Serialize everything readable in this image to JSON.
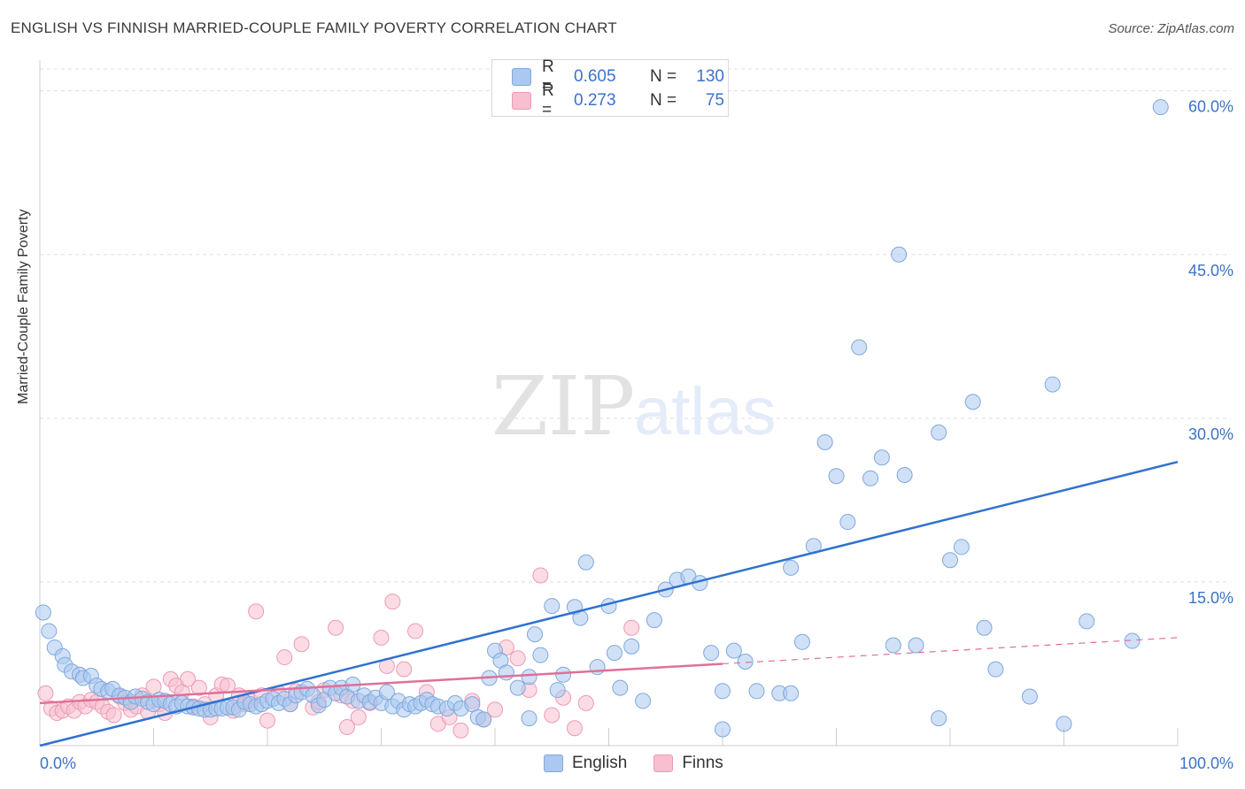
{
  "title": "ENGLISH VS FINNISH MARRIED-COUPLE FAMILY POVERTY CORRELATION CHART",
  "source": "Source: ZipAtlas.com",
  "watermark": {
    "zip": "ZIP",
    "atlas": "atlas"
  },
  "legend": {
    "rows": [
      {
        "r_label": "R =",
        "r_value": "0.605",
        "n_label": "N =",
        "n_value": "130"
      },
      {
        "r_label": "R =",
        "r_value": "0.273",
        "n_label": "N =",
        "n_value": "75"
      }
    ]
  },
  "bottom_legend": {
    "english": "English",
    "finns": "Finns"
  },
  "colors": {
    "english_fill": "#aac8f0",
    "english_stroke": "#7fa8dc",
    "english_line": "#2f72d0",
    "finns_fill": "#f7bfd0",
    "finns_stroke": "#ee9ab4",
    "finns_line": "#e0709a",
    "axis_text": "#3a73c9",
    "grid": "#dddddd"
  },
  "chart_data": {
    "type": "scatter",
    "title": "ENGLISH VS FINNISH MARRIED-COUPLE FAMILY POVERTY CORRELATION CHART",
    "xlabel": "",
    "ylabel": "Married-Couple Family Poverty",
    "xlim": [
      0,
      100
    ],
    "ylim": [
      0,
      62
    ],
    "x_tick_labels": [
      {
        "value": 0,
        "label": "0.0%"
      },
      {
        "value": 100,
        "label": "100.0%"
      }
    ],
    "y_tick_labels": [
      {
        "value": 15,
        "label": "15.0%"
      },
      {
        "value": 30,
        "label": "30.0%"
      },
      {
        "value": 45,
        "label": "45.0%"
      },
      {
        "value": 60,
        "label": "60.0%"
      }
    ],
    "grid": true,
    "series": [
      {
        "name": "English",
        "r": 0.605,
        "n": 130,
        "trend": {
          "x": [
            0,
            100
          ],
          "y": [
            0,
            26
          ]
        },
        "points": [
          [
            0.3,
            12.2
          ],
          [
            0.8,
            10.5
          ],
          [
            1.3,
            9.0
          ],
          [
            2,
            8.2
          ],
          [
            2.2,
            7.4
          ],
          [
            2.8,
            6.8
          ],
          [
            3.5,
            6.5
          ],
          [
            3.8,
            6.2
          ],
          [
            4.5,
            6.4
          ],
          [
            5,
            5.5
          ],
          [
            5.4,
            5.2
          ],
          [
            6,
            5.0
          ],
          [
            6.4,
            5.2
          ],
          [
            7,
            4.6
          ],
          [
            7.5,
            4.4
          ],
          [
            8,
            4.0
          ],
          [
            8.4,
            4.5
          ],
          [
            9,
            4.3
          ],
          [
            9.5,
            4.0
          ],
          [
            10,
            3.8
          ],
          [
            10.5,
            4.2
          ],
          [
            11,
            4.1
          ],
          [
            11.5,
            3.8
          ],
          [
            12,
            3.6
          ],
          [
            12.5,
            3.9
          ],
          [
            13,
            3.6
          ],
          [
            13.5,
            3.5
          ],
          [
            14,
            3.4
          ],
          [
            14.5,
            3.3
          ],
          [
            15,
            3.3
          ],
          [
            15.5,
            3.4
          ],
          [
            16,
            3.4
          ],
          [
            16.5,
            3.5
          ],
          [
            17,
            3.5
          ],
          [
            17.5,
            3.3
          ],
          [
            18,
            4.0
          ],
          [
            18.5,
            3.8
          ],
          [
            19,
            3.6
          ],
          [
            19.5,
            3.8
          ],
          [
            20,
            4.1
          ],
          [
            20.5,
            4.3
          ],
          [
            21,
            3.9
          ],
          [
            21.5,
            4.3
          ],
          [
            22,
            3.8
          ],
          [
            22.5,
            4.6
          ],
          [
            23,
            4.9
          ],
          [
            23.5,
            5.2
          ],
          [
            24,
            4.6
          ],
          [
            24.5,
            3.7
          ],
          [
            25,
            4.2
          ],
          [
            25.5,
            5.3
          ],
          [
            26,
            4.8
          ],
          [
            26.5,
            5.3
          ],
          [
            27,
            4.5
          ],
          [
            27.5,
            5.6
          ],
          [
            28,
            4.1
          ],
          [
            28.5,
            4.6
          ],
          [
            29,
            4.0
          ],
          [
            29.5,
            4.4
          ],
          [
            30,
            3.9
          ],
          [
            30.5,
            4.9
          ],
          [
            31,
            3.6
          ],
          [
            31.5,
            4.1
          ],
          [
            32,
            3.3
          ],
          [
            32.5,
            3.8
          ],
          [
            33,
            3.6
          ],
          [
            33.5,
            3.9
          ],
          [
            34,
            4.2
          ],
          [
            34.5,
            3.8
          ],
          [
            35,
            3.6
          ],
          [
            35.8,
            3.4
          ],
          [
            36.5,
            3.9
          ],
          [
            37,
            3.4
          ],
          [
            38,
            3.8
          ],
          [
            38.5,
            2.6
          ],
          [
            39,
            2.4
          ],
          [
            39.5,
            6.2
          ],
          [
            40,
            8.7
          ],
          [
            40.5,
            7.8
          ],
          [
            41,
            6.7
          ],
          [
            42,
            5.3
          ],
          [
            43,
            6.3
          ],
          [
            43.5,
            10.2
          ],
          [
            44,
            8.3
          ],
          [
            45,
            12.8
          ],
          [
            45.5,
            5.1
          ],
          [
            46,
            6.5
          ],
          [
            47,
            12.7
          ],
          [
            47.5,
            11.7
          ],
          [
            48,
            16.8
          ],
          [
            49,
            7.2
          ],
          [
            50,
            12.8
          ],
          [
            50.5,
            8.5
          ],
          [
            51,
            5.3
          ],
          [
            52,
            9.1
          ],
          [
            53,
            4.1
          ],
          [
            54,
            11.5
          ],
          [
            55,
            14.3
          ],
          [
            56,
            15.2
          ],
          [
            57,
            15.5
          ],
          [
            58,
            14.9
          ],
          [
            59,
            8.5
          ],
          [
            60,
            5.0
          ],
          [
            61,
            8.7
          ],
          [
            62,
            7.7
          ],
          [
            63,
            5.0
          ],
          [
            65,
            4.8
          ],
          [
            66,
            16.3
          ],
          [
            67,
            9.5
          ],
          [
            68,
            18.3
          ],
          [
            69,
            27.8
          ],
          [
            70,
            24.7
          ],
          [
            71,
            20.5
          ],
          [
            72,
            36.5
          ],
          [
            73,
            24.5
          ],
          [
            74,
            26.4
          ],
          [
            75,
            9.2
          ],
          [
            76,
            24.8
          ],
          [
            77,
            9.2
          ],
          [
            79,
            28.7
          ],
          [
            80,
            17.0
          ],
          [
            81,
            18.2
          ],
          [
            82,
            31.5
          ],
          [
            83,
            10.8
          ],
          [
            84,
            7.0
          ],
          [
            87,
            4.5
          ],
          [
            89,
            33.1
          ],
          [
            90,
            2.0
          ],
          [
            92,
            11.4
          ],
          [
            96,
            9.6
          ],
          [
            75.5,
            45.0
          ],
          [
            98.5,
            58.5
          ],
          [
            60,
            1.5
          ],
          [
            79,
            2.5
          ],
          [
            66,
            4.8
          ],
          [
            43,
            2.5
          ]
        ]
      },
      {
        "name": "Finns",
        "r": 0.273,
        "n": 75,
        "trend": {
          "x": [
            0,
            60
          ],
          "y": [
            3.9,
            7.5
          ]
        },
        "trend_dashed": {
          "x": [
            60,
            100
          ],
          "y": [
            7.5,
            9.9
          ]
        },
        "points": [
          [
            0.5,
            4.8
          ],
          [
            1,
            3.4
          ],
          [
            1.5,
            3.0
          ],
          [
            2,
            3.2
          ],
          [
            2.5,
            3.6
          ],
          [
            3,
            3.2
          ],
          [
            3.5,
            4.0
          ],
          [
            4,
            3.6
          ],
          [
            4.5,
            4.2
          ],
          [
            5,
            4.0
          ],
          [
            5.5,
            3.6
          ],
          [
            6,
            3.1
          ],
          [
            6.5,
            2.8
          ],
          [
            7,
            4.5
          ],
          [
            7.5,
            3.9
          ],
          [
            8,
            3.3
          ],
          [
            8.5,
            3.6
          ],
          [
            9,
            4.6
          ],
          [
            9.5,
            3.1
          ],
          [
            10,
            5.4
          ],
          [
            10.5,
            3.8
          ],
          [
            11,
            3.0
          ],
          [
            11.5,
            6.1
          ],
          [
            12,
            5.5
          ],
          [
            12.5,
            4.9
          ],
          [
            13,
            6.1
          ],
          [
            13.5,
            3.6
          ],
          [
            14,
            5.3
          ],
          [
            14.5,
            3.8
          ],
          [
            15,
            2.6
          ],
          [
            15.5,
            4.6
          ],
          [
            16,
            5.6
          ],
          [
            16.5,
            5.5
          ],
          [
            17,
            3.2
          ],
          [
            17.5,
            4.6
          ],
          [
            18,
            3.8
          ],
          [
            18.5,
            4.1
          ],
          [
            19,
            12.3
          ],
          [
            19.5,
            4.6
          ],
          [
            20,
            2.3
          ],
          [
            21,
            4.8
          ],
          [
            21.5,
            8.1
          ],
          [
            22,
            3.8
          ],
          [
            22.5,
            5.0
          ],
          [
            23,
            9.3
          ],
          [
            24,
            3.5
          ],
          [
            24.5,
            4.0
          ],
          [
            25,
            5.1
          ],
          [
            26,
            10.8
          ],
          [
            26.5,
            4.6
          ],
          [
            27,
            1.7
          ],
          [
            27.5,
            4.1
          ],
          [
            28,
            2.6
          ],
          [
            29,
            3.9
          ],
          [
            30,
            9.9
          ],
          [
            30.5,
            7.3
          ],
          [
            31,
            13.2
          ],
          [
            32,
            7.0
          ],
          [
            33,
            10.5
          ],
          [
            34,
            4.9
          ],
          [
            35,
            2.0
          ],
          [
            36,
            2.6
          ],
          [
            37,
            1.4
          ],
          [
            38,
            4.1
          ],
          [
            39,
            2.4
          ],
          [
            40,
            3.3
          ],
          [
            41,
            9.0
          ],
          [
            42,
            8.0
          ],
          [
            43,
            5.1
          ],
          [
            44,
            15.6
          ],
          [
            45,
            2.8
          ],
          [
            46,
            4.4
          ],
          [
            47,
            1.6
          ],
          [
            48,
            3.9
          ],
          [
            52,
            10.8
          ]
        ]
      }
    ]
  }
}
